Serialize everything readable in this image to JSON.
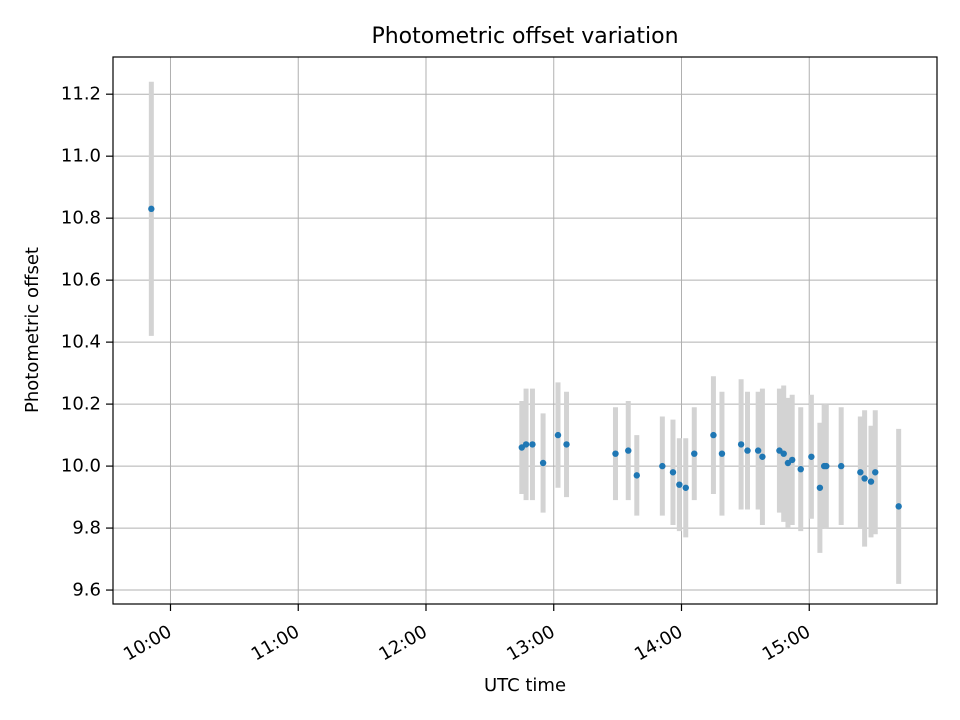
{
  "chart_data": {
    "type": "scatter",
    "title": "Photometric offset variation",
    "xlabel": "UTC time",
    "ylabel": "Photometric offset",
    "xlim": [
      "09:33",
      "16:00"
    ],
    "ylim": [
      9.555,
      11.32
    ],
    "x_ticks": [
      "10:00",
      "11:00",
      "12:00",
      "13:00",
      "14:00",
      "15:00"
    ],
    "y_ticks": [
      9.6,
      9.8,
      10.0,
      10.2,
      10.4,
      10.6,
      10.8,
      11.0,
      11.2
    ],
    "grid": true,
    "colors": {
      "marker": "#1f77b4",
      "errorbar": "#d3d3d3",
      "grid": "#b0b0b0",
      "axes": "#000000"
    },
    "points": [
      {
        "x": "09:51",
        "y": 10.83,
        "err": 0.41
      },
      {
        "x": "12:45",
        "y": 10.06,
        "err": 0.15
      },
      {
        "x": "12:47",
        "y": 10.07,
        "err": 0.18
      },
      {
        "x": "12:50",
        "y": 10.07,
        "err": 0.18
      },
      {
        "x": "12:55",
        "y": 10.01,
        "err": 0.16
      },
      {
        "x": "13:02",
        "y": 10.1,
        "err": 0.17
      },
      {
        "x": "13:06",
        "y": 10.07,
        "err": 0.17
      },
      {
        "x": "13:29",
        "y": 10.04,
        "err": 0.15
      },
      {
        "x": "13:35",
        "y": 10.05,
        "err": 0.16
      },
      {
        "x": "13:39",
        "y": 9.97,
        "err": 0.13
      },
      {
        "x": "13:51",
        "y": 10.0,
        "err": 0.16
      },
      {
        "x": "13:56",
        "y": 9.98,
        "err": 0.17
      },
      {
        "x": "13:59",
        "y": 9.94,
        "err": 0.15
      },
      {
        "x": "14:02",
        "y": 9.93,
        "err": 0.16
      },
      {
        "x": "14:06",
        "y": 10.04,
        "err": 0.15
      },
      {
        "x": "14:15",
        "y": 10.1,
        "err": 0.19
      },
      {
        "x": "14:19",
        "y": 10.04,
        "err": 0.2
      },
      {
        "x": "14:28",
        "y": 10.07,
        "err": 0.21
      },
      {
        "x": "14:31",
        "y": 10.05,
        "err": 0.19
      },
      {
        "x": "14:36",
        "y": 10.05,
        "err": 0.19
      },
      {
        "x": "14:38",
        "y": 10.03,
        "err": 0.22
      },
      {
        "x": "14:46",
        "y": 10.05,
        "err": 0.2
      },
      {
        "x": "14:48",
        "y": 10.04,
        "err": 0.22
      },
      {
        "x": "14:50",
        "y": 10.01,
        "err": 0.21
      },
      {
        "x": "14:52",
        "y": 10.02,
        "err": 0.21
      },
      {
        "x": "14:56",
        "y": 9.99,
        "err": 0.2
      },
      {
        "x": "15:01",
        "y": 10.03,
        "err": 0.2
      },
      {
        "x": "15:05",
        "y": 9.93,
        "err": 0.21
      },
      {
        "x": "15:07",
        "y": 10.0,
        "err": 0.2
      },
      {
        "x": "15:08",
        "y": 10.0,
        "err": 0.2
      },
      {
        "x": "15:15",
        "y": 10.0,
        "err": 0.19
      },
      {
        "x": "15:24",
        "y": 9.98,
        "err": 0.18
      },
      {
        "x": "15:26",
        "y": 9.96,
        "err": 0.22
      },
      {
        "x": "15:29",
        "y": 9.95,
        "err": 0.18
      },
      {
        "x": "15:31",
        "y": 9.98,
        "err": 0.2
      },
      {
        "x": "15:42",
        "y": 9.87,
        "err": 0.25
      }
    ]
  }
}
